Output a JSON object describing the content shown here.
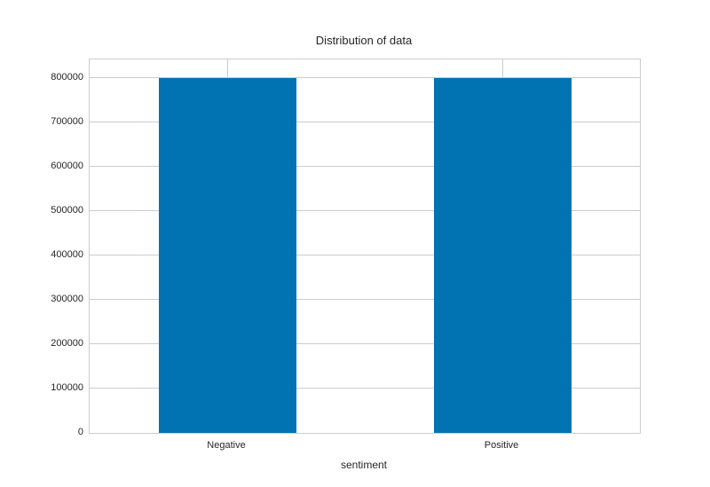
{
  "chart_data": {
    "type": "bar",
    "title": "Distribution of data",
    "xlabel": "sentiment",
    "ylabel": "",
    "categories": [
      "Negative",
      "Positive"
    ],
    "values": [
      800000,
      800000
    ],
    "yticks": [
      0,
      100000,
      200000,
      300000,
      400000,
      500000,
      600000,
      700000,
      800000
    ],
    "ylim": [
      0,
      840000
    ],
    "grid": "on",
    "legend": "none",
    "style": {
      "bar_color": "#0173b2",
      "grid_color": "#cccccc",
      "spine_color": "#cccccc",
      "text_color": "#262626",
      "background_color": "#ffffff"
    }
  }
}
